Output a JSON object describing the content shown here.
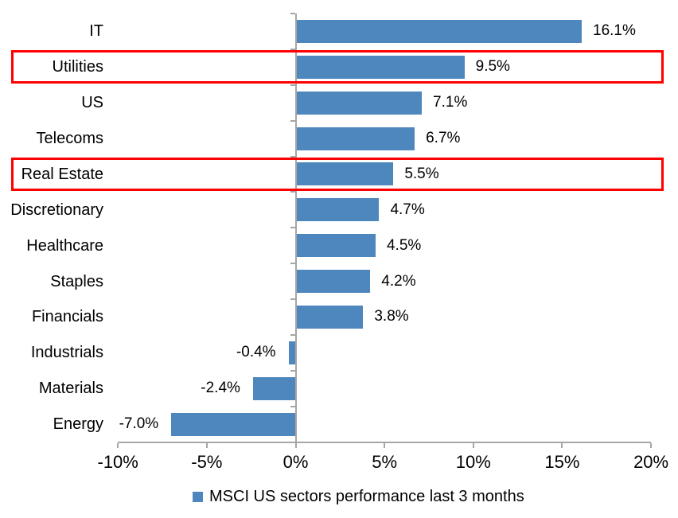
{
  "chart_data": {
    "type": "bar",
    "orientation": "horizontal",
    "categories": [
      "IT",
      "Utilities",
      "US",
      "Telecoms",
      "Real Estate",
      "Discretionary",
      "Healthcare",
      "Staples",
      "Financials",
      "Industrials",
      "Materials",
      "Energy"
    ],
    "values": [
      16.1,
      9.5,
      7.1,
      6.7,
      5.5,
      4.7,
      4.5,
      4.2,
      3.8,
      -0.4,
      -2.4,
      -7.0
    ],
    "data_labels": [
      "16.1%",
      "9.5%",
      "7.1%",
      "6.7%",
      "5.5%",
      "4.7%",
      "4.5%",
      "4.2%",
      "3.8%",
      "-0.4%",
      "-2.4%",
      "-7.0%"
    ],
    "highlighted_categories": [
      "Utilities",
      "Real Estate"
    ],
    "x_axis": {
      "tick_labels": [
        "-10%",
        "-5%",
        "0%",
        "5%",
        "10%",
        "15%",
        "20%"
      ],
      "tick_values": [
        -10,
        -5,
        0,
        5,
        10,
        15,
        20
      ],
      "min": -10,
      "max": 20,
      "grid": false
    },
    "legend": {
      "label": "MSCI US sectors performance last 3 months",
      "position": "bottom"
    },
    "colors": {
      "bar": "#4E87BD",
      "highlight_box": "#FF0000",
      "axis": "#A6A6A6",
      "text": "#000000"
    }
  }
}
